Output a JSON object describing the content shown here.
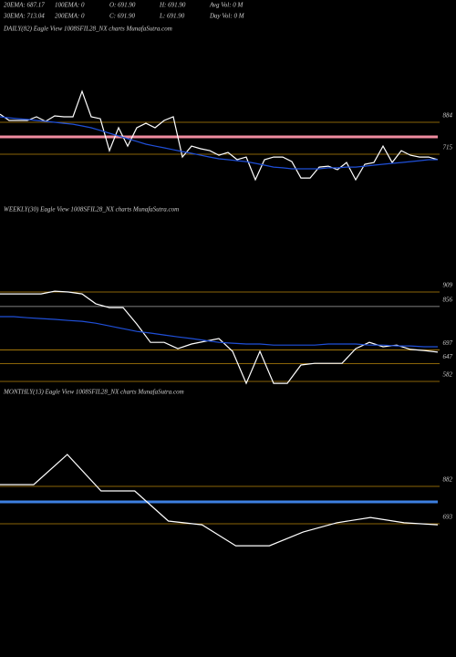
{
  "indicators": [
    [
      "20EMA: 687.17",
      "100EMA: 0",
      "O: 691.90",
      "H: 691.90",
      "Avg Vol: 0  M"
    ],
    [
      "30EMA: 713.04",
      "200EMA: 0",
      "C: 691.90",
      "L: 691.90",
      "Day Vol: 0  M"
    ]
  ],
  "chart_data": [
    {
      "type": "line",
      "title": "DAILY(82) Eagle  View  1008SFIL28_NX  charts MunafaSutra.com",
      "ylim": [
        493,
        1338
      ],
      "levels": [
        {
          "value": 884,
          "color": "#b8860b"
        },
        {
          "value": 715,
          "color": "#b8860b"
        }
      ],
      "bands": [
        {
          "value": 807,
          "color": "#f08ca0"
        }
      ],
      "series": [
        {
          "color": "#ffffff",
          "values": [
            927,
            894,
            894,
            894,
            913,
            889,
            918,
            913,
            913,
            1048,
            913,
            903,
            734,
            855,
            758,
            855,
            879,
            855,
            894,
            913,
            700,
            758,
            744,
            734,
            710,
            725,
            686,
            700,
            580,
            686,
            700,
            700,
            676,
            589,
            589,
            647,
            652,
            633,
            671,
            580,
            662,
            671,
            758,
            671,
            734,
            710,
            700,
            700,
            686
          ]
        },
        {
          "color": "#1f4fd8",
          "values": [
            913,
            908,
            903,
            899,
            894,
            889,
            884,
            879,
            874,
            865,
            855,
            841,
            826,
            812,
            797,
            783,
            768,
            758,
            749,
            739,
            729,
            720,
            710,
            700,
            691,
            686,
            681,
            676,
            667,
            657,
            647,
            643,
            638,
            638,
            638,
            638,
            643,
            643,
            647,
            647,
            652,
            657,
            662,
            667,
            671,
            676,
            681,
            686,
            686
          ]
        }
      ]
    },
    {
      "type": "line",
      "title": "WEEKLY(30) Eagle  View  1008SFIL28_NX  charts MunafaSutra.com",
      "ylim": [
        542,
        1176
      ],
      "levels": [
        {
          "value": 909,
          "color": "#b8860b"
        },
        {
          "value": 856,
          "color": "#aaaaaa"
        },
        {
          "value": 697,
          "color": "#b8860b"
        },
        {
          "value": 647,
          "color": "#b8860b"
        },
        {
          "value": 582,
          "color": "#b8860b"
        }
      ],
      "bands": [],
      "series": [
        {
          "color": "#ffffff",
          "values": [
            902,
            902,
            902,
            902,
            912,
            909,
            902,
            866,
            852,
            852,
            792,
            725,
            725,
            702,
            719,
            729,
            739,
            692,
            575,
            692,
            575,
            575,
            642,
            648,
            648,
            648,
            702,
            725,
            709,
            715,
            699,
            695,
            689
          ]
        },
        {
          "color": "#1f4fd8",
          "values": [
            819,
            819,
            815,
            812,
            809,
            805,
            802,
            795,
            785,
            775,
            765,
            759,
            752,
            745,
            739,
            732,
            725,
            722,
            719,
            719,
            715,
            715,
            715,
            715,
            719,
            719,
            719,
            715,
            715,
            712,
            712,
            709,
            709
          ]
        }
      ]
    },
    {
      "type": "line",
      "title": "MONTHLY(13) Eagle  View  1008SFIL28_NX  charts MunafaSutra.com",
      "ylim": [
        112,
        1311
      ],
      "levels": [
        {
          "value": 882,
          "color": "#b8860b"
        },
        {
          "value": 693,
          "color": "#b8860b"
        }
      ],
      "bands": [
        {
          "value": 804,
          "color": "#3d7fe0"
        }
      ],
      "series": [
        {
          "color": "#ffffff",
          "values": [
            891,
            891,
            1043,
            859,
            859,
            707,
            688,
            582,
            582,
            651,
            698,
            725,
            698,
            688
          ]
        }
      ]
    }
  ]
}
